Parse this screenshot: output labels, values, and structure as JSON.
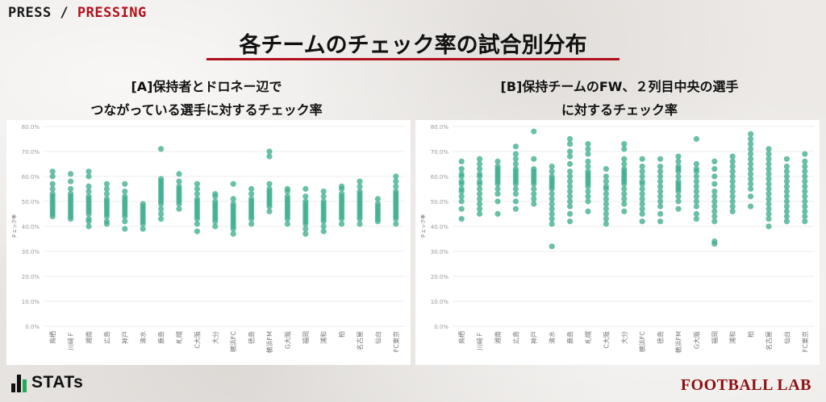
{
  "header": {
    "press_a": "PRESS / ",
    "press_b": "PRESSING",
    "title": "各チームのチェック率の試合別分布"
  },
  "footer": {
    "stats_logo": "STATs",
    "football_lab_logo": "FOOTBALL LAB"
  },
  "colors": {
    "dot": "#3fae8f",
    "accent": "#b0101c",
    "grid": "#eeeeee"
  },
  "chart_data": [
    {
      "type": "scatter",
      "title_lines": [
        "[A]保持者とドロネー辺で",
        "つながっている選手に対するチェック率"
      ],
      "ylabel": "チェック率",
      "ylim": [
        0,
        80
      ],
      "yticks": [
        "0.0%",
        "10.0%",
        "20.0%",
        "30.0%",
        "40.0%",
        "50.0%",
        "60.0%",
        "70.0%",
        "80.0%"
      ],
      "categories": [
        "鳥栖",
        "川崎Ｆ",
        "湘南",
        "広島",
        "神戸",
        "清水",
        "鹿島",
        "札幌",
        "C大阪",
        "大分",
        "横浜FC",
        "徳島",
        "横浜FM",
        "G大阪",
        "福岡",
        "浦和",
        "柏",
        "名古屋",
        "仙台",
        "FC東京"
      ],
      "series": [
        {
          "category": "鳥栖",
          "values": [
            44,
            45,
            46,
            47,
            48,
            49,
            50,
            51,
            52,
            53,
            55,
            57,
            60,
            62
          ]
        },
        {
          "category": "川崎Ｆ",
          "values": [
            43,
            44,
            45,
            46,
            47,
            48,
            49,
            50,
            51,
            52,
            53,
            55,
            58,
            61
          ]
        },
        {
          "category": "湘南",
          "values": [
            40,
            42,
            43,
            45,
            46,
            47,
            48,
            49,
            50,
            51,
            52,
            54,
            56,
            60,
            62
          ]
        },
        {
          "category": "広島",
          "values": [
            41,
            42,
            44,
            45,
            46,
            47,
            48,
            49,
            50,
            51,
            53,
            55,
            57
          ]
        },
        {
          "category": "神戸",
          "values": [
            39,
            42,
            44,
            45,
            46,
            47,
            48,
            49,
            50,
            51,
            52,
            54,
            57
          ]
        },
        {
          "category": "清水",
          "values": [
            39,
            41,
            42,
            43,
            44,
            45,
            46,
            47,
            48,
            49
          ]
        },
        {
          "category": "鹿島",
          "values": [
            43,
            45,
            47,
            49,
            50,
            51,
            52,
            53,
            54,
            55,
            56,
            57,
            58,
            59,
            71
          ]
        },
        {
          "category": "札幌",
          "values": [
            47,
            49,
            50,
            51,
            52,
            53,
            54,
            55,
            56,
            58,
            61
          ]
        },
        {
          "category": "C大阪",
          "values": [
            38,
            41,
            43,
            44,
            45,
            46,
            47,
            48,
            49,
            50,
            51,
            53,
            55,
            57
          ]
        },
        {
          "category": "大分",
          "values": [
            40,
            42,
            43,
            44,
            45,
            46,
            47,
            48,
            49,
            50,
            52,
            53
          ]
        },
        {
          "category": "横浜FC",
          "values": [
            37,
            39,
            40,
            41,
            42,
            43,
            44,
            45,
            46,
            47,
            48,
            49,
            51,
            57
          ]
        },
        {
          "category": "徳島",
          "values": [
            41,
            43,
            44,
            45,
            46,
            47,
            48,
            49,
            50,
            51,
            53,
            55
          ]
        },
        {
          "category": "横浜FM",
          "values": [
            46,
            48,
            49,
            50,
            51,
            52,
            53,
            54,
            55,
            57,
            68,
            70
          ]
        },
        {
          "category": "G大阪",
          "values": [
            41,
            43,
            44,
            45,
            46,
            47,
            48,
            49,
            50,
            51,
            52,
            54,
            55
          ]
        },
        {
          "category": "福岡",
          "values": [
            37,
            39,
            41,
            42,
            43,
            44,
            45,
            46,
            47,
            48,
            49,
            50,
            52,
            55
          ]
        },
        {
          "category": "浦和",
          "values": [
            38,
            40,
            42,
            43,
            44,
            45,
            46,
            47,
            48,
            49,
            50,
            52,
            54
          ]
        },
        {
          "category": "柏",
          "values": [
            41,
            43,
            44,
            45,
            46,
            47,
            48,
            49,
            50,
            51,
            52,
            53,
            55,
            56
          ]
        },
        {
          "category": "名古屋",
          "values": [
            41,
            43,
            44,
            45,
            46,
            47,
            48,
            49,
            50,
            51,
            52,
            53,
            54,
            56,
            58
          ]
        },
        {
          "category": "仙台",
          "values": [
            42,
            43,
            44,
            45,
            46,
            47,
            48,
            49,
            51
          ]
        },
        {
          "category": "FC東京",
          "values": [
            41,
            43,
            44,
            45,
            46,
            47,
            48,
            49,
            50,
            51,
            52,
            53,
            54,
            56,
            58,
            60
          ]
        }
      ]
    },
    {
      "type": "scatter",
      "title_lines": [
        "[B]保持チームのFW、２列目中央の選手",
        "に対するチェック率"
      ],
      "ylabel": "チェック率",
      "ylim": [
        0,
        80
      ],
      "yticks": [
        "0.0%",
        "10.0%",
        "20.0%",
        "30.0%",
        "40.0%",
        "50.0%",
        "60.0%",
        "70.0%",
        "80.0%"
      ],
      "categories": [
        "鳥栖",
        "川崎Ｆ",
        "湘南",
        "広島",
        "神戸",
        "清水",
        "鹿島",
        "札幌",
        "C大阪",
        "大分",
        "横浜FC",
        "徳島",
        "横浜FM",
        "G大阪",
        "福岡",
        "浦和",
        "柏",
        "名古屋",
        "仙台",
        "FC東京"
      ],
      "series": [
        {
          "category": "鳥栖",
          "values": [
            43,
            47,
            50,
            52,
            54,
            55,
            57,
            58,
            60,
            61,
            63,
            66
          ]
        },
        {
          "category": "川崎Ｆ",
          "values": [
            45,
            47,
            49,
            51,
            53,
            55,
            57,
            58,
            60,
            61,
            63,
            65,
            67
          ]
        },
        {
          "category": "湘南",
          "values": [
            45,
            50,
            53,
            55,
            57,
            58,
            59,
            60,
            61,
            62,
            63,
            64,
            66
          ]
        },
        {
          "category": "広島",
          "values": [
            47,
            50,
            53,
            55,
            57,
            58,
            59,
            60,
            61,
            62,
            63,
            65,
            67,
            69,
            72
          ]
        },
        {
          "category": "神戸",
          "values": [
            49,
            51,
            53,
            55,
            57,
            58,
            59,
            60,
            61,
            62,
            63,
            67,
            78
          ]
        },
        {
          "category": "清水",
          "values": [
            32,
            41,
            43,
            45,
            47,
            49,
            51,
            53,
            55,
            56,
            57,
            58,
            59,
            60,
            62,
            64
          ]
        },
        {
          "category": "鹿島",
          "values": [
            42,
            45,
            48,
            50,
            52,
            54,
            56,
            58,
            60,
            62,
            65,
            68,
            70,
            73,
            75
          ]
        },
        {
          "category": "札幌",
          "values": [
            46,
            50,
            52,
            54,
            56,
            57,
            58,
            59,
            60,
            61,
            62,
            64,
            66,
            69,
            71,
            73
          ]
        },
        {
          "category": "C大阪",
          "values": [
            41,
            43,
            45,
            47,
            49,
            51,
            53,
            55,
            56,
            58,
            60,
            63
          ]
        },
        {
          "category": "大分",
          "values": [
            46,
            49,
            51,
            53,
            55,
            57,
            58,
            59,
            60,
            61,
            62,
            63,
            65,
            67,
            71,
            73
          ]
        },
        {
          "category": "横浜FC",
          "values": [
            42,
            45,
            47,
            49,
            51,
            53,
            55,
            57,
            58,
            60,
            62,
            64,
            67
          ]
        },
        {
          "category": "徳島",
          "values": [
            42,
            45,
            48,
            50,
            52,
            54,
            56,
            58,
            60,
            62,
            64,
            67
          ]
        },
        {
          "category": "横浜FM",
          "values": [
            47,
            50,
            52,
            54,
            55,
            56,
            57,
            58,
            60,
            62,
            63,
            64,
            66,
            68
          ]
        },
        {
          "category": "G大阪",
          "values": [
            43,
            45,
            48,
            50,
            52,
            54,
            56,
            58,
            60,
            62,
            63,
            65,
            75
          ]
        },
        {
          "category": "福岡",
          "values": [
            33,
            34,
            42,
            44,
            46,
            48,
            50,
            52,
            54,
            57,
            60,
            63,
            66
          ]
        },
        {
          "category": "浦和",
          "values": [
            46,
            48,
            50,
            52,
            54,
            56,
            58,
            60,
            62,
            64,
            66,
            68
          ]
        },
        {
          "category": "柏",
          "values": [
            48,
            52,
            55,
            57,
            59,
            61,
            63,
            65,
            67,
            69,
            71,
            73,
            75,
            77
          ]
        },
        {
          "category": "名古屋",
          "values": [
            40,
            43,
            45,
            47,
            49,
            51,
            53,
            55,
            57,
            59,
            61,
            63,
            65,
            67,
            69,
            71
          ]
        },
        {
          "category": "仙台",
          "values": [
            42,
            44,
            46,
            48,
            50,
            52,
            54,
            56,
            58,
            60,
            62,
            64,
            67
          ]
        },
        {
          "category": "FC東京",
          "values": [
            42,
            44,
            46,
            48,
            50,
            52,
            54,
            56,
            58,
            60,
            62,
            64,
            66,
            69
          ]
        }
      ]
    }
  ]
}
